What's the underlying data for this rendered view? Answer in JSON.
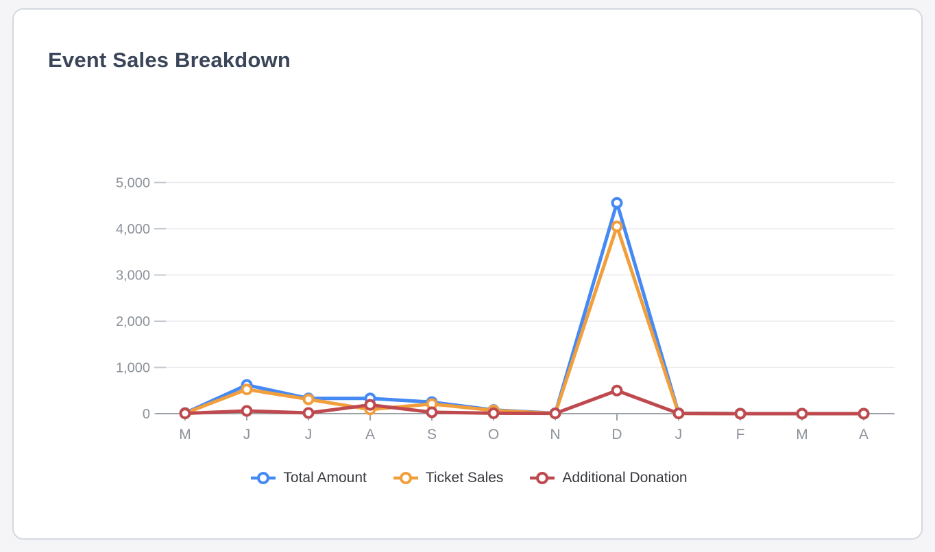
{
  "page": {
    "background_color": "#f5f5f7",
    "card_background": "#ffffff",
    "card_border_color": "#d4d8e0"
  },
  "header": {
    "title": "Event Sales Breakdown",
    "title_color": "#3b4559"
  },
  "chart_data": {
    "type": "line",
    "title": "Event Sales Breakdown",
    "xlabel": "",
    "ylabel": "",
    "categories": [
      "M",
      "J",
      "J",
      "A",
      "S",
      "O",
      "N",
      "D",
      "J",
      "F",
      "M",
      "A"
    ],
    "y_ticks": [
      0,
      1000,
      2000,
      3000,
      4000,
      5000
    ],
    "y_tick_labels": [
      "0",
      "1,000",
      "2,000",
      "3,000",
      "4,000",
      "5,000"
    ],
    "ylim": [
      0,
      5200
    ],
    "grid": true,
    "legend_position": "bottom",
    "marker_style": "open-circle",
    "axis_label_color": "#8c919a",
    "grid_color": "#e8eaee",
    "axis_line_color": "#9ca1a8",
    "series": [
      {
        "name": "Total Amount",
        "color": "#4589f5",
        "values": [
          15,
          620,
          330,
          330,
          250,
          80,
          10,
          4560,
          10,
          0,
          0,
          0
        ]
      },
      {
        "name": "Ticket Sales",
        "color": "#f19f3d",
        "values": [
          10,
          525,
          310,
          90,
          210,
          70,
          5,
          4050,
          5,
          0,
          0,
          0
        ]
      },
      {
        "name": "Additional Donation",
        "color": "#be4a4f",
        "values": [
          5,
          60,
          15,
          190,
          30,
          10,
          5,
          500,
          5,
          0,
          0,
          0
        ]
      }
    ]
  }
}
